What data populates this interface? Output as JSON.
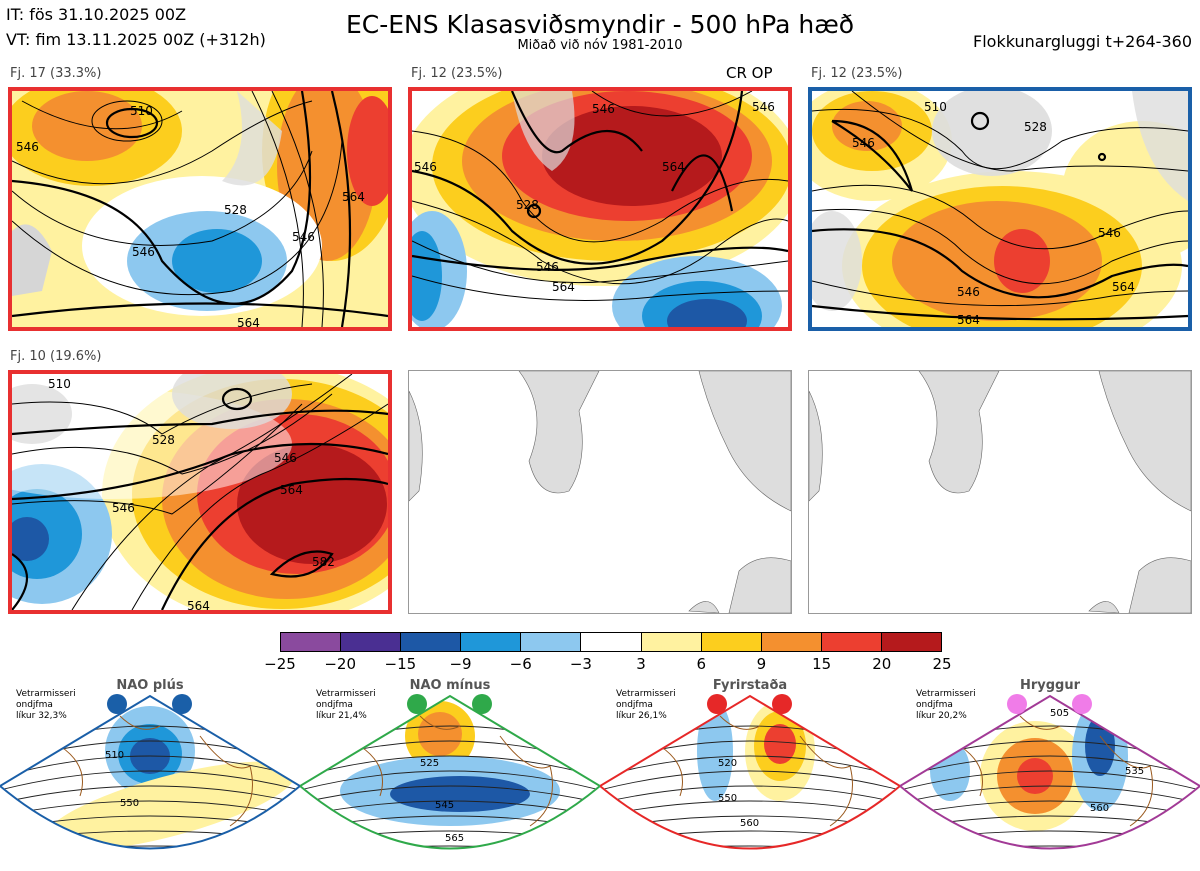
{
  "header": {
    "it": "IT: fös 31.10.2025 00Z",
    "vt": "VT: fim 13.11.2025 00Z  (+312h)",
    "title": "EC-ENS Klasasviðsmyndir - 500 hPa hæð",
    "subtitle": "Miðað við nóv 1981-2010",
    "window": "Flokkunargluggi t+264-360"
  },
  "panels": [
    {
      "label": "Fj. 17 (33.3%)",
      "border": "#e83030",
      "empty": false,
      "contour_labels": [
        "510",
        "528",
        "546",
        "546",
        "564",
        "546",
        "564"
      ]
    },
    {
      "label": "Fj. 12 (23.5%)",
      "border": "#e83030",
      "empty": false,
      "extra": "CR OP",
      "contour_labels": [
        "546",
        "546",
        "528",
        "546",
        "564",
        "564",
        "546"
      ]
    },
    {
      "label": "Fj. 12 (23.5%)",
      "border": "#1a5fa8",
      "empty": false,
      "contour_labels": [
        "510",
        "528",
        "546",
        "546",
        "564",
        "564",
        "546"
      ]
    },
    {
      "label": "Fj. 10 (19.6%)",
      "border": "#e83030",
      "empty": false,
      "contour_labels": [
        "510",
        "528",
        "546",
        "546",
        "564",
        "582",
        "564"
      ]
    },
    {
      "label": "",
      "border": "none",
      "empty": true
    },
    {
      "label": "",
      "border": "none",
      "empty": true
    }
  ],
  "chart_data": {
    "type": "heatmap",
    "colorbar": {
      "ticks": [
        "−25",
        "−20",
        "−15",
        "−9",
        "−6",
        "−3",
        "3",
        "6",
        "9",
        "15",
        "20",
        "25"
      ],
      "colors": [
        "#8a4a9e",
        "#4a2f92",
        "#1d58a6",
        "#1f97d9",
        "#8dc8ef",
        "#ffffff",
        "#fff2a0",
        "#fcce1e",
        "#f4902f",
        "#ec3f30",
        "#b51a1c"
      ]
    }
  },
  "regimes": [
    {
      "name": "NAO plús",
      "text": [
        "Vetrarmisseri",
        "ondjfma",
        "líkur 32,3%"
      ],
      "color": "#1a5fa8",
      "labels": [
        "510",
        "550"
      ]
    },
    {
      "name": "NAO mínus",
      "text": [
        "Vetrarmisseri",
        "ondjfma",
        "líkur 21,4%"
      ],
      "color": "#2fa94a",
      "labels": [
        "525",
        "545",
        "565"
      ]
    },
    {
      "name": "Fyrirstaða",
      "text": [
        "Vetrarmisseri",
        "ondjfma",
        "líkur 26,1%"
      ],
      "color": "#e62828",
      "labels": [
        "520",
        "550",
        "560"
      ]
    },
    {
      "name": "Hryggur",
      "text": [
        "Vetrarmisseri",
        "ondjfma",
        "líkur 20,2%"
      ],
      "color": "#a23a96",
      "labels": [
        "505",
        "535",
        "560"
      ]
    }
  ]
}
